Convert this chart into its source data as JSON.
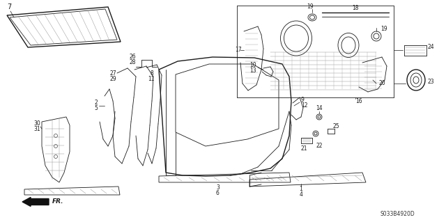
{
  "bg_color": "#ffffff",
  "line_color": "#1a1a1a",
  "part_code": "S033B4920D",
  "figsize": [
    6.4,
    3.19
  ],
  "dpi": 100
}
